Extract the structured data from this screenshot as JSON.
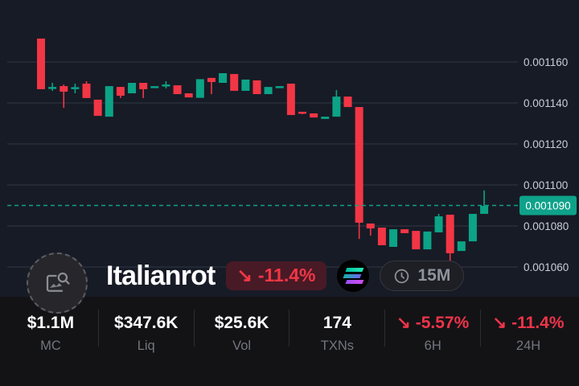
{
  "chart_data": {
    "type": "candlestick",
    "timeframe": "15M",
    "num_candles": 40,
    "y_axis": {
      "ticks": [
        {
          "price": 0.00116,
          "label": "0.001160"
        },
        {
          "price": 0.00114,
          "label": "0.001140"
        },
        {
          "price": 0.00112,
          "label": "0.001120"
        },
        {
          "price": 0.0011,
          "label": "0.001100"
        },
        {
          "price": 0.00108,
          "label": "0.001080"
        },
        {
          "price": 0.00106,
          "label": "0.001060"
        }
      ],
      "ylim": [
        0.0010525,
        0.00119
      ]
    },
    "current_price": {
      "price": 0.00109,
      "label": "0.001090"
    },
    "candles": [
      [
        0.0011714,
        0.0011714,
        0.0011467,
        0.0011467
      ],
      [
        0.0011471,
        0.0011498,
        0.0011459,
        0.0011478
      ],
      [
        0.0011482,
        0.001149,
        0.0011376,
        0.0011455
      ],
      [
        0.0011473,
        0.0011494,
        0.0011447,
        0.0011477
      ],
      [
        0.0011494,
        0.0011506,
        0.0011424,
        0.0011424
      ],
      [
        0.0011416,
        0.0011416,
        0.0011337,
        0.0011337
      ],
      [
        0.0011333,
        0.0011482,
        0.0011333,
        0.0011482
      ],
      [
        0.0011478,
        0.0011478,
        0.0011424,
        0.0011435
      ],
      [
        0.0011447,
        0.0011498,
        0.0011447,
        0.0011498
      ],
      [
        0.0011498,
        0.0011498,
        0.0011424,
        0.0011467
      ],
      [
        0.0011475,
        0.0011482,
        0.0011475,
        0.0011482
      ],
      [
        0.0011482,
        0.0011506,
        0.0011471,
        0.001149
      ],
      [
        0.0011486,
        0.0011486,
        0.0011443,
        0.0011443
      ],
      [
        0.0011447,
        0.0011447,
        0.0011427,
        0.0011427
      ],
      [
        0.0011425,
        0.0011516,
        0.0011425,
        0.0011516
      ],
      [
        0.0011522,
        0.0011522,
        0.0011443,
        0.0011502
      ],
      [
        0.0011498,
        0.0011545,
        0.0011498,
        0.0011545
      ],
      [
        0.0011541,
        0.0011541,
        0.0011459,
        0.0011459
      ],
      [
        0.0011459,
        0.0011514,
        0.0011459,
        0.0011514
      ],
      [
        0.001151,
        0.001151,
        0.0011443,
        0.0011443
      ],
      [
        0.0011443,
        0.0011478,
        0.0011443,
        0.0011478
      ],
      [
        0.0011475,
        0.0011482,
        0.0011475,
        0.0011482
      ],
      [
        0.0011494,
        0.0011494,
        0.0011341,
        0.0011341
      ],
      [
        0.0011357,
        0.0011357,
        0.0011345,
        0.0011349
      ],
      [
        0.0011349,
        0.0011349,
        0.0011329,
        0.0011329
      ],
      [
        0.0011322,
        0.0011333,
        0.0011322,
        0.0011333
      ],
      [
        0.0011333,
        0.0011463,
        0.0011333,
        0.0011431
      ],
      [
        0.0011431,
        0.0011431,
        0.001138,
        0.001138
      ],
      [
        0.001138,
        0.001138,
        0.0010737,
        0.0010816
      ],
      [
        0.0010812,
        0.0010812,
        0.0010753,
        0.0010788
      ],
      [
        0.0010792,
        0.0010792,
        0.0010706,
        0.0010706
      ],
      [
        0.0010698,
        0.0010784,
        0.0010698,
        0.0010784
      ],
      [
        0.0010784,
        0.0010784,
        0.0010765,
        0.0010765
      ],
      [
        0.0010776,
        0.0010776,
        0.0010686,
        0.0010686
      ],
      [
        0.0010686,
        0.0010773,
        0.0010686,
        0.0010773
      ],
      [
        0.0010769,
        0.0010859,
        0.0010769,
        0.0010847
      ],
      [
        0.0010855,
        0.0010855,
        0.0010627,
        0.0010667
      ],
      [
        0.0010678,
        0.0010725,
        0.0010678,
        0.0010725
      ],
      [
        0.0010725,
        0.0010859,
        0.0010725,
        0.0010859
      ],
      [
        0.0010859,
        0.0010973,
        0.0010859,
        0.0010898
      ]
    ],
    "colors": {
      "up": "#0ca386",
      "down": "#f23645",
      "grid": "#242936",
      "axis_text": "#c9ced8",
      "accent": "#0fa28a",
      "background": "#171b26",
      "bar_background": "#131316"
    }
  },
  "token": {
    "name": "Italianrot",
    "change": "-11.4%",
    "arrow": "↘",
    "timeframe": "15M"
  },
  "stats": [
    {
      "value": "$1.1M",
      "label": "MC"
    },
    {
      "value": "$347.6K",
      "label": "Liq"
    },
    {
      "value": "$25.6K",
      "label": "Vol"
    },
    {
      "value": "174",
      "label": "TXNs"
    },
    {
      "value": "-5.57%",
      "label": "6H",
      "arrow": "↘"
    },
    {
      "value": "-11.4%",
      "label": "24H",
      "arrow": "↘"
    }
  ]
}
